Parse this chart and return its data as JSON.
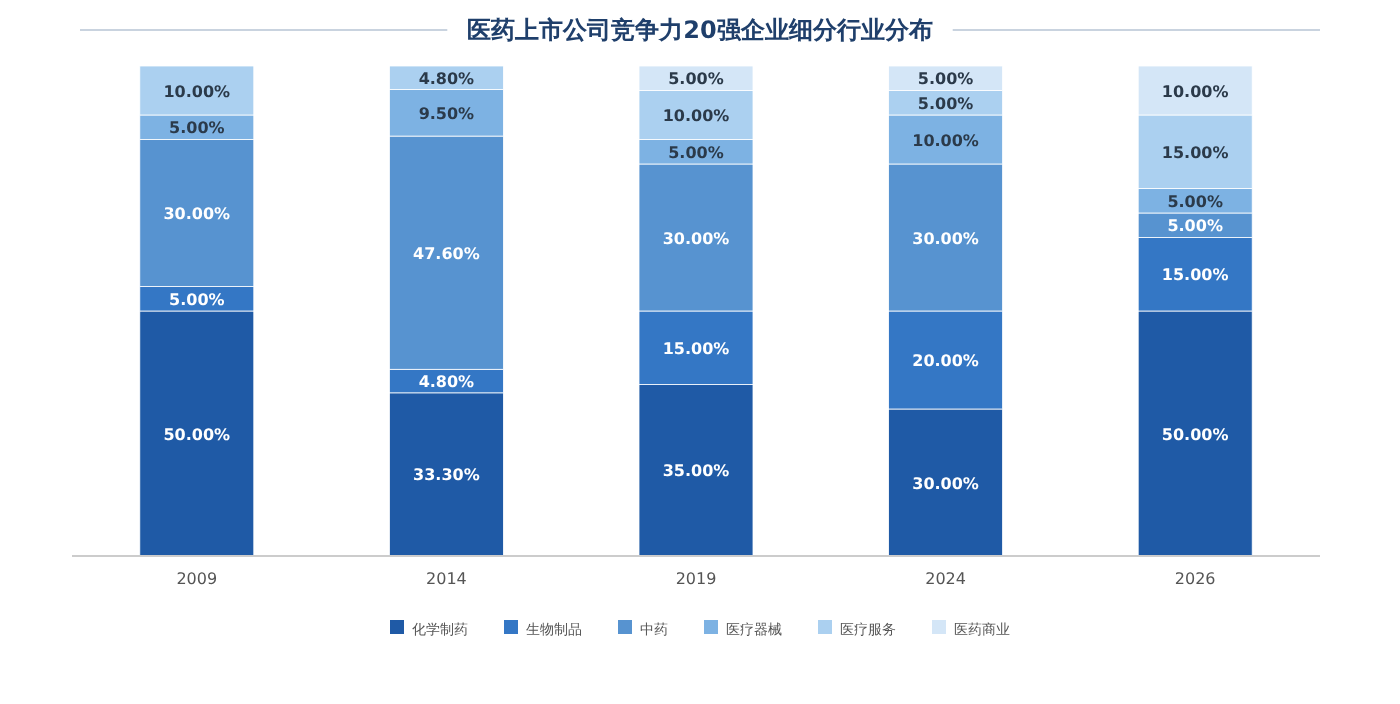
{
  "chart_data": {
    "type": "bar",
    "title": "医药上市公司竞争力20强企业细分行业分布",
    "stacked": true,
    "legend": "bottom",
    "categories": [
      "2009",
      "2014",
      "2019",
      "2024",
      "2026"
    ],
    "series": [
      {
        "name": "化学制药",
        "color": "#1f5aa6",
        "values": [
          50,
          33.3,
          35,
          30,
          50
        ],
        "value_labels": [
          "50.00%",
          "33.30%",
          "35.00%",
          "30.00%",
          "50.00%"
        ]
      },
      {
        "name": "生物制品",
        "color": "#3477c5",
        "values": [
          5,
          4.8,
          15,
          20,
          15
        ],
        "value_labels": [
          "5.00%",
          "4.80%",
          "15.00%",
          "20.00%",
          "15.00%"
        ]
      },
      {
        "name": "中药",
        "color": "#5793d0",
        "values": [
          30,
          47.6,
          30,
          30,
          5
        ],
        "value_labels": [
          "30.00%",
          "47.60%",
          "30.00%",
          "30.00%",
          "5.00%"
        ]
      },
      {
        "name": "医疗器械",
        "color": "#7db2e3",
        "values": [
          5,
          9.5,
          5,
          10,
          5
        ],
        "value_labels": [
          "5.00%",
          "9.50%",
          "5.00%",
          "10.00%",
          "5.00%"
        ]
      },
      {
        "name": "医疗服务",
        "color": "#abd0f0",
        "values": [
          10,
          4.8,
          10,
          5,
          15
        ],
        "value_labels": [
          "10.00%",
          "4.80%",
          "10.00%",
          "5.00%",
          "15.00%"
        ]
      },
      {
        "name": "医药商业",
        "color": "#d4e6f7",
        "values": [
          null,
          null,
          5,
          5,
          10
        ],
        "value_labels": [
          null,
          null,
          "5.00%",
          "5.00%",
          "10.00%"
        ]
      }
    ]
  }
}
